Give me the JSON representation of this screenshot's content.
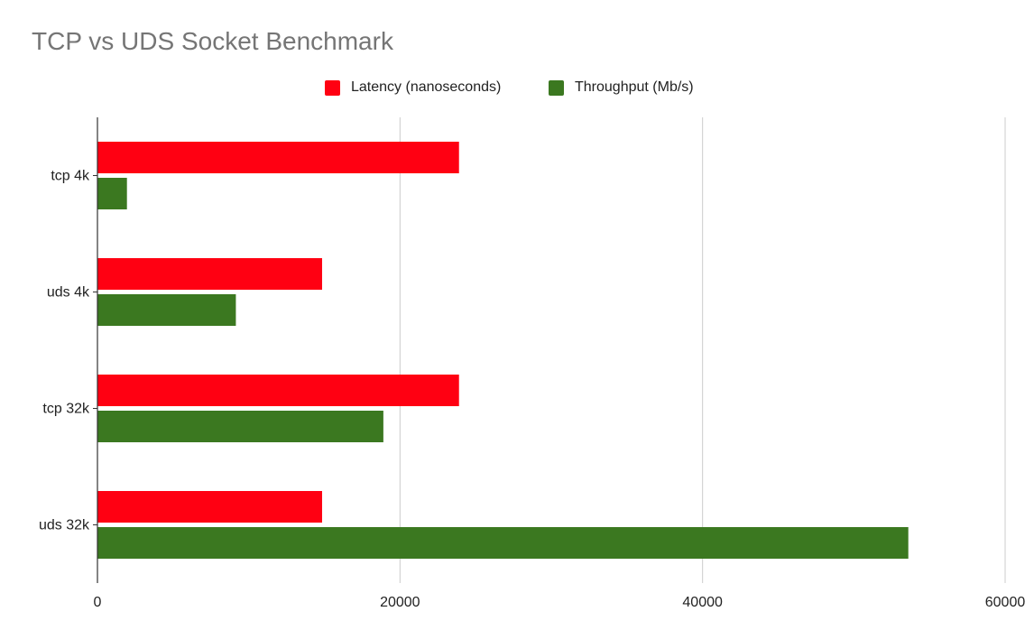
{
  "chart_data": {
    "type": "bar",
    "orientation": "horizontal",
    "title": "TCP vs UDS Socket Benchmark",
    "categories": [
      "tcp 4k",
      "uds 4k",
      "tcp 32k",
      "uds 32k"
    ],
    "series": [
      {
        "name": "Latency (nanoseconds)",
        "color": "#ff0012",
        "values": [
          23900,
          14850,
          23900,
          14850
        ]
      },
      {
        "name": "Throughput (Mb/s)",
        "color": "#3b7820",
        "values": [
          1950,
          9150,
          18900,
          53600
        ]
      }
    ],
    "xlim": [
      0,
      60000
    ],
    "xticks": [
      "0",
      "20000",
      "40000",
      "60000"
    ],
    "grid": true,
    "legend_position": "top"
  }
}
